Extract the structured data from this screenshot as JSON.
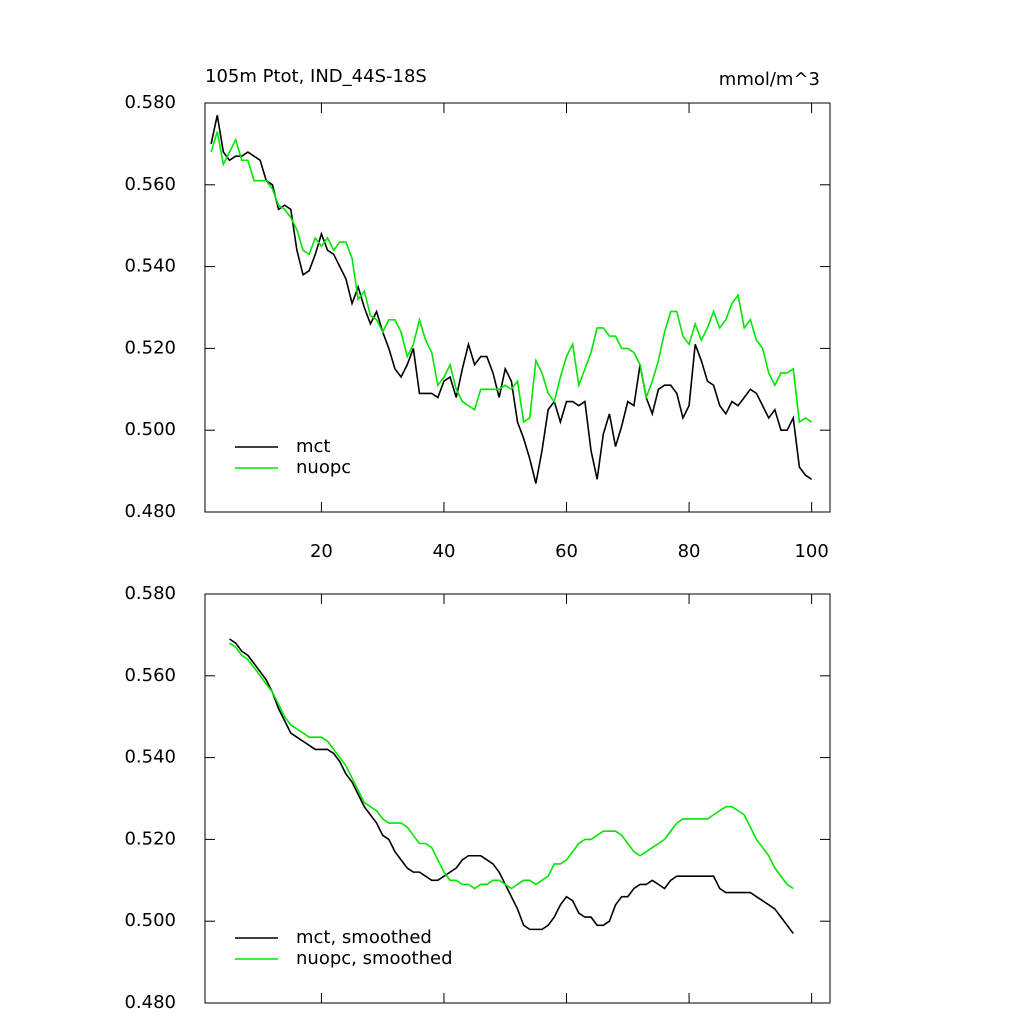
{
  "chart_data": [
    {
      "type": "line",
      "title": "105m Ptot, IND_44S-18S",
      "units": "mmol/m^3",
      "x": [
        2,
        3,
        4,
        5,
        6,
        7,
        8,
        9,
        10,
        11,
        12,
        13,
        14,
        15,
        16,
        17,
        18,
        19,
        20,
        21,
        22,
        23,
        24,
        25,
        26,
        27,
        28,
        29,
        30,
        31,
        32,
        33,
        34,
        35,
        36,
        37,
        38,
        39,
        40,
        41,
        42,
        43,
        44,
        45,
        46,
        47,
        48,
        49,
        50,
        51,
        52,
        53,
        54,
        55,
        56,
        57,
        58,
        59,
        60,
        61,
        62,
        63,
        64,
        65,
        66,
        67,
        68,
        69,
        70,
        71,
        72,
        73,
        74,
        75,
        76,
        77,
        78,
        79,
        80,
        81,
        82,
        83,
        84,
        85,
        86,
        87,
        88,
        89,
        90,
        91,
        92,
        93,
        94,
        95,
        96,
        97,
        98,
        99,
        100
      ],
      "series": [
        {
          "name": "mct",
          "color": "#000000",
          "values": [
            0.57,
            0.577,
            0.568,
            0.566,
            0.567,
            0.567,
            0.568,
            0.567,
            0.566,
            0.561,
            0.56,
            0.554,
            0.555,
            0.554,
            0.544,
            0.538,
            0.539,
            0.543,
            0.548,
            0.544,
            0.543,
            0.54,
            0.537,
            0.531,
            0.535,
            0.53,
            0.526,
            0.529,
            0.524,
            0.52,
            0.515,
            0.513,
            0.516,
            0.52,
            0.509,
            0.509,
            0.509,
            0.508,
            0.512,
            0.513,
            0.508,
            0.515,
            0.521,
            0.516,
            0.518,
            0.518,
            0.514,
            0.508,
            0.515,
            0.512,
            0.502,
            0.498,
            0.493,
            0.487,
            0.495,
            0.505,
            0.507,
            0.502,
            0.507,
            0.507,
            0.506,
            0.507,
            0.495,
            0.488,
            0.499,
            0.504,
            0.496,
            0.501,
            0.507,
            0.506,
            0.516,
            0.508,
            0.504,
            0.51,
            0.511,
            0.511,
            0.509,
            0.503,
            0.506,
            0.521,
            0.517,
            0.512,
            0.511,
            0.506,
            0.504,
            0.507,
            0.506,
            0.508,
            0.51,
            0.509,
            0.506,
            0.503,
            0.505,
            0.5,
            0.5,
            0.503,
            0.491,
            0.489,
            0.488
          ]
        },
        {
          "name": "nuopc",
          "color": "#00e600",
          "values": [
            0.568,
            0.573,
            0.565,
            0.568,
            0.571,
            0.566,
            0.566,
            0.561,
            0.561,
            0.561,
            0.559,
            0.555,
            0.554,
            0.552,
            0.549,
            0.544,
            0.543,
            0.547,
            0.545,
            0.547,
            0.544,
            0.546,
            0.546,
            0.542,
            0.532,
            0.534,
            0.528,
            0.527,
            0.524,
            0.527,
            0.527,
            0.524,
            0.518,
            0.521,
            0.527,
            0.522,
            0.519,
            0.511,
            0.513,
            0.516,
            0.51,
            0.507,
            0.506,
            0.505,
            0.51,
            0.51,
            0.51,
            0.51,
            0.511,
            0.51,
            0.512,
            0.502,
            0.503,
            0.517,
            0.514,
            0.509,
            0.507,
            0.513,
            0.518,
            0.521,
            0.511,
            0.515,
            0.519,
            0.525,
            0.525,
            0.523,
            0.523,
            0.52,
            0.52,
            0.519,
            0.516,
            0.508,
            0.512,
            0.517,
            0.524,
            0.529,
            0.529,
            0.523,
            0.521,
            0.526,
            0.522,
            0.525,
            0.529,
            0.525,
            0.527,
            0.531,
            0.533,
            0.525,
            0.527,
            0.522,
            0.52,
            0.514,
            0.511,
            0.514,
            0.514,
            0.515,
            0.502,
            0.503,
            0.502
          ]
        }
      ],
      "xlim": [
        1,
        103
      ],
      "xticks": [
        20,
        40,
        60,
        80,
        100
      ],
      "xtick_labels": true,
      "ylim": [
        0.48,
        0.58
      ],
      "yticks": [
        {
          "value": 0.48,
          "label": "0.480"
        },
        {
          "value": 0.5,
          "label": "0.500"
        },
        {
          "value": 0.52,
          "label": "0.520"
        },
        {
          "value": 0.54,
          "label": "0.540"
        },
        {
          "value": 0.56,
          "label": "0.560"
        },
        {
          "value": 0.58,
          "label": "0.580"
        }
      ],
      "legend": "lower left"
    },
    {
      "type": "line",
      "x": [
        5,
        6,
        7,
        8,
        9,
        10,
        11,
        12,
        13,
        14,
        15,
        16,
        17,
        18,
        19,
        20,
        21,
        22,
        23,
        24,
        25,
        26,
        27,
        28,
        29,
        30,
        31,
        32,
        33,
        34,
        35,
        36,
        37,
        38,
        39,
        40,
        41,
        42,
        43,
        44,
        45,
        46,
        47,
        48,
        49,
        50,
        51,
        52,
        53,
        54,
        55,
        56,
        57,
        58,
        59,
        60,
        61,
        62,
        63,
        64,
        65,
        66,
        67,
        68,
        69,
        70,
        71,
        72,
        73,
        74,
        75,
        76,
        77,
        78,
        79,
        80,
        81,
        82,
        83,
        84,
        85,
        86,
        87,
        88,
        89,
        90,
        91,
        92,
        93,
        94,
        95,
        96,
        97
      ],
      "series": [
        {
          "name": "mct, smoothed",
          "color": "#000000",
          "values": [
            0.569,
            0.568,
            0.566,
            0.565,
            0.563,
            0.561,
            0.559,
            0.556,
            0.552,
            0.549,
            0.546,
            0.545,
            0.544,
            0.543,
            0.542,
            0.542,
            0.542,
            0.541,
            0.539,
            0.536,
            0.534,
            0.531,
            0.528,
            0.526,
            0.524,
            0.521,
            0.52,
            0.517,
            0.515,
            0.513,
            0.512,
            0.512,
            0.511,
            0.51,
            0.51,
            0.511,
            0.512,
            0.513,
            0.515,
            0.516,
            0.516,
            0.516,
            0.515,
            0.514,
            0.512,
            0.509,
            0.506,
            0.503,
            0.499,
            0.498,
            0.498,
            0.498,
            0.499,
            0.501,
            0.504,
            0.506,
            0.505,
            0.502,
            0.501,
            0.501,
            0.499,
            0.499,
            0.5,
            0.504,
            0.506,
            0.506,
            0.508,
            0.509,
            0.509,
            0.51,
            0.509,
            0.508,
            0.51,
            0.511,
            0.511,
            0.511,
            0.511,
            0.511,
            0.511,
            0.511,
            0.508,
            0.507,
            0.507,
            0.507,
            0.507,
            0.507,
            0.506,
            0.505,
            0.504,
            0.503,
            0.501,
            0.499,
            0.497
          ]
        },
        {
          "name": "nuopc, smoothed",
          "color": "#00e600",
          "values": [
            0.568,
            0.567,
            0.565,
            0.564,
            0.562,
            0.56,
            0.558,
            0.556,
            0.553,
            0.55,
            0.548,
            0.547,
            0.546,
            0.545,
            0.545,
            0.545,
            0.544,
            0.542,
            0.54,
            0.538,
            0.535,
            0.532,
            0.529,
            0.528,
            0.527,
            0.525,
            0.524,
            0.524,
            0.524,
            0.523,
            0.521,
            0.519,
            0.519,
            0.518,
            0.515,
            0.512,
            0.51,
            0.51,
            0.509,
            0.509,
            0.508,
            0.509,
            0.509,
            0.51,
            0.51,
            0.509,
            0.508,
            0.509,
            0.51,
            0.51,
            0.509,
            0.51,
            0.511,
            0.514,
            0.514,
            0.515,
            0.517,
            0.519,
            0.52,
            0.52,
            0.521,
            0.522,
            0.522,
            0.522,
            0.521,
            0.519,
            0.517,
            0.516,
            0.517,
            0.518,
            0.519,
            0.52,
            0.522,
            0.524,
            0.525,
            0.525,
            0.525,
            0.525,
            0.525,
            0.526,
            0.527,
            0.528,
            0.528,
            0.527,
            0.526,
            0.523,
            0.52,
            0.518,
            0.516,
            0.513,
            0.511,
            0.509,
            0.508
          ]
        }
      ],
      "xlim": [
        1,
        103
      ],
      "xticks": [
        20,
        40,
        60,
        80,
        100
      ],
      "xtick_labels": false,
      "ylim": [
        0.48,
        0.58
      ],
      "yticks": [
        {
          "value": 0.48,
          "label": "0.480"
        },
        {
          "value": 0.5,
          "label": "0.500"
        },
        {
          "value": 0.52,
          "label": "0.520"
        },
        {
          "value": 0.54,
          "label": "0.540"
        },
        {
          "value": 0.56,
          "label": "0.560"
        },
        {
          "value": 0.58,
          "label": "0.580"
        }
      ],
      "legend": "lower left"
    }
  ]
}
